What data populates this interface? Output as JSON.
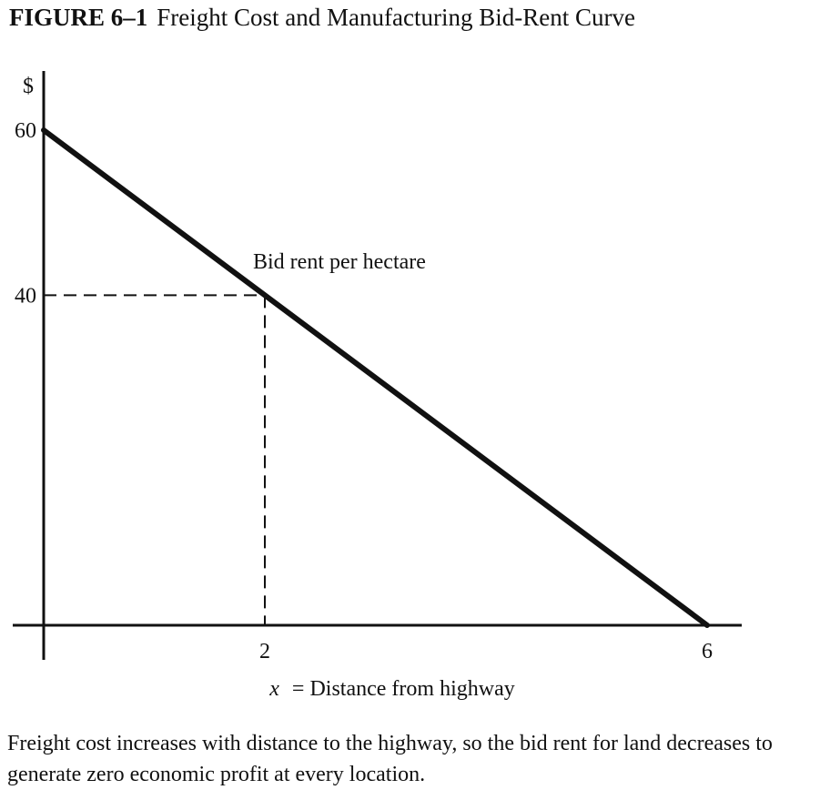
{
  "figure": {
    "label": "FIGURE 6–1",
    "title": "Freight Cost and Manufacturing Bid-Rent Curve",
    "caption": "Freight cost increases with distance to the highway, so the bid rent for land decreases to generate zero economic profit at every location."
  },
  "chart_data": {
    "type": "line",
    "ylabel": "$",
    "xlabel_var": "x",
    "xlabel_text": "= Distance from highway",
    "x_ticks": [
      2,
      6
    ],
    "y_ticks": [
      40,
      60
    ],
    "xlim": [
      0,
      6
    ],
    "ylim": [
      0,
      60
    ],
    "grid": false,
    "series": [
      {
        "name": "Bid rent per hectare",
        "x": [
          0,
          6
        ],
        "y": [
          60,
          0
        ],
        "color": "#111111"
      }
    ],
    "reference_point": {
      "x": 2,
      "y": 40,
      "style": "dashed"
    }
  }
}
